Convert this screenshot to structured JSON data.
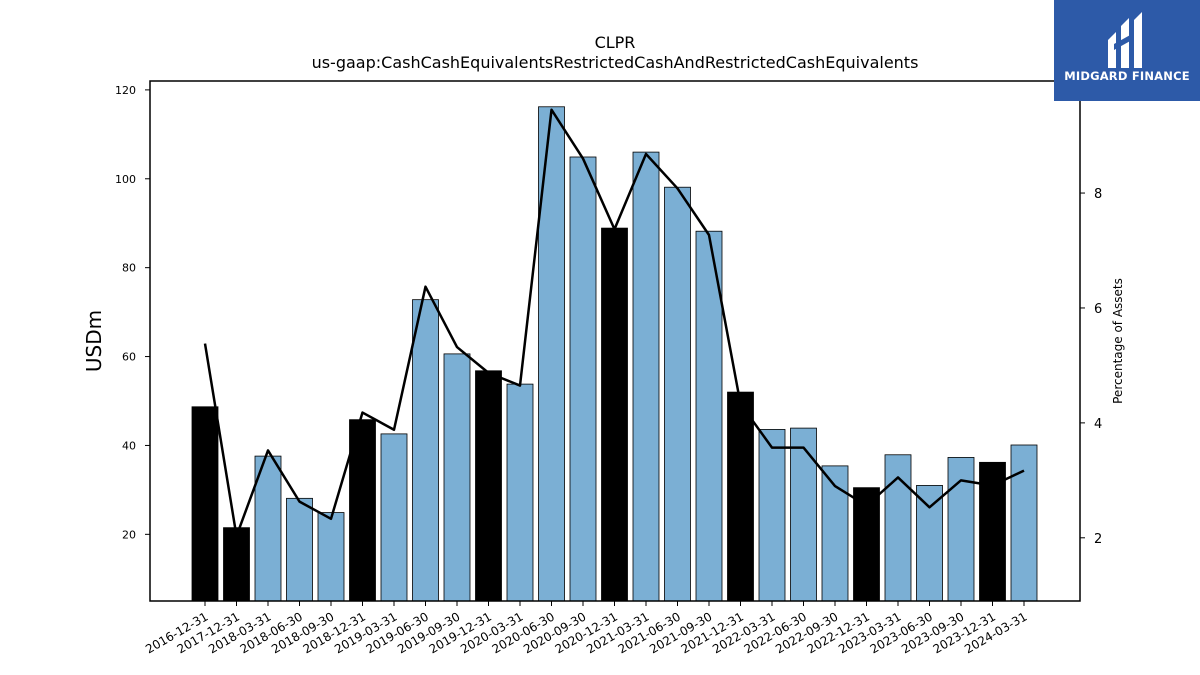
{
  "chart_data": {
    "type": "bar",
    "title": "CLPR",
    "subtitle": "us-gaap:CashCashEquivalentsRestrictedCashAndRestrictedCashEquivalents",
    "ylabel": "USDm",
    "ylabel_right": "Percentage of Assets",
    "ylim": [
      5,
      122
    ],
    "ylim_right": [
      0.9,
      9.95
    ],
    "yticks": [
      20,
      40,
      60,
      80,
      100,
      120
    ],
    "yticks_right": [
      2,
      4,
      6,
      8
    ],
    "categories": [
      "2016-12-31",
      "2017-12-31",
      "2018-03-31",
      "2018-06-30",
      "2018-09-30",
      "2018-12-31",
      "2019-03-31",
      "2019-06-30",
      "2019-09-30",
      "2019-12-31",
      "2020-03-31",
      "2020-06-30",
      "2020-09-30",
      "2020-12-31",
      "2021-03-31",
      "2021-06-30",
      "2021-09-30",
      "2021-12-31",
      "2022-03-31",
      "2022-06-30",
      "2022-09-30",
      "2022-12-31",
      "2023-03-31",
      "2023-06-30",
      "2023-09-30",
      "2023-12-31",
      "2024-03-31"
    ],
    "series": [
      {
        "type": "bar",
        "values": [
          48.7,
          21.5,
          37.6,
          28.1,
          24.9,
          45.8,
          42.6,
          72.8,
          60.6,
          56.8,
          53.8,
          116.2,
          104.9,
          88.9,
          106.0,
          98.1,
          88.2,
          52.0,
          43.6,
          43.9,
          35.4,
          30.5,
          37.9,
          31.0,
          37.3,
          36.2,
          40.1
        ],
        "colors_by_period": "year-end (-12-31) bars black, quarterly bars blue"
      },
      {
        "type": "line",
        "axis": "right",
        "values": [
          5.38,
          2.03,
          3.52,
          2.63,
          2.33,
          4.18,
          3.88,
          6.37,
          5.32,
          4.87,
          4.65,
          9.45,
          8.6,
          7.37,
          8.68,
          8.08,
          7.27,
          4.33,
          3.57,
          3.57,
          2.9,
          2.56,
          3.05,
          2.53,
          3.0,
          2.91,
          3.17
        ]
      }
    ],
    "colors": {
      "bar_quarter": "#7bafd4",
      "bar_year_end": "#000000",
      "line": "#000000"
    },
    "grid": false,
    "legend": "none"
  },
  "logo": {
    "text": "MIDGARD FINANCE",
    "icon": "midgard-logo-icon",
    "background": "#2d5aa8"
  }
}
